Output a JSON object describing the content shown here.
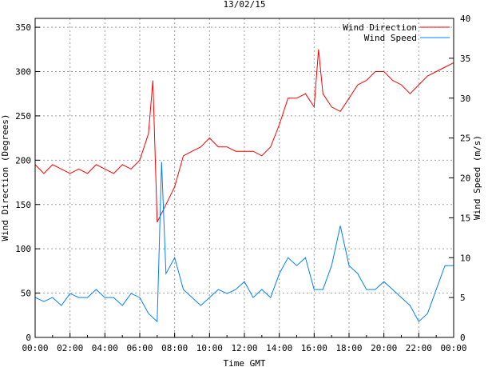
{
  "chart_data": {
    "type": "line",
    "title": "13/02/15",
    "xlabel": "Time GMT",
    "ylabel": "Wind Direction (Degrees)",
    "y2label": "Wind Speed (m/s)",
    "xlim": [
      0,
      24
    ],
    "ylim": [
      0,
      360
    ],
    "y2lim": [
      0,
      40
    ],
    "grid": true,
    "legend_position": "top-right",
    "x_tick_labels": [
      "00:00",
      "02:00",
      "04:00",
      "06:00",
      "08:00",
      "10:00",
      "12:00",
      "14:00",
      "16:00",
      "18:00",
      "20:00",
      "22:00",
      "00:00"
    ],
    "y_ticks": [
      0,
      50,
      100,
      150,
      200,
      250,
      300,
      350
    ],
    "y2_ticks": [
      0,
      5,
      10,
      15,
      20,
      25,
      30,
      35,
      40
    ],
    "series": [
      {
        "name": "Wind Direction",
        "axis": "left",
        "color": "#ff0000",
        "x": [
          0,
          0.5,
          1,
          1.5,
          2,
          2.5,
          3,
          3.5,
          4,
          4.5,
          5,
          5.5,
          6,
          6.5,
          6.75,
          7,
          7.5,
          8,
          8.5,
          9,
          9.5,
          10,
          10.5,
          11,
          11.5,
          12,
          12.5,
          13,
          13.5,
          14,
          14.5,
          15,
          15.5,
          16,
          16.25,
          16.5,
          17,
          17.5,
          18,
          18.5,
          19,
          19.5,
          20,
          20.5,
          21,
          21.5,
          22,
          22.5,
          23,
          23.5,
          24
        ],
        "values": [
          195,
          185,
          195,
          190,
          185,
          190,
          185,
          195,
          190,
          185,
          195,
          190,
          200,
          230,
          290,
          130,
          150,
          170,
          205,
          210,
          215,
          225,
          215,
          215,
          210,
          210,
          210,
          205,
          215,
          240,
          270,
          270,
          275,
          260,
          325,
          275,
          260,
          255,
          270,
          285,
          290,
          300,
          300,
          290,
          285,
          275,
          285,
          295,
          300,
          305,
          310
        ]
      },
      {
        "name": "Wind Speed",
        "axis": "right",
        "color": "#0080ff",
        "x": [
          0,
          0.5,
          1,
          1.5,
          2,
          2.5,
          3,
          3.5,
          4,
          4.5,
          5,
          5.5,
          6,
          6.5,
          7,
          7.25,
          7.5,
          8,
          8.5,
          9,
          9.5,
          10,
          10.5,
          11,
          11.5,
          12,
          12.5,
          13,
          13.5,
          14,
          14.5,
          15,
          15.5,
          16,
          16.5,
          17,
          17.5,
          18,
          18.5,
          19,
          19.5,
          20,
          20.5,
          21,
          21.5,
          22,
          22.5,
          23,
          23.5,
          24
        ],
        "values": [
          5,
          4.5,
          5,
          4,
          5.5,
          5,
          5,
          6,
          5,
          5,
          4,
          5.5,
          5,
          3,
          2,
          22,
          8,
          10,
          6,
          5,
          4,
          5,
          6,
          5.5,
          6,
          7,
          5,
          6,
          5,
          8,
          10,
          9,
          10,
          6,
          6,
          9,
          14,
          9,
          8,
          6,
          6,
          7,
          6,
          5,
          4,
          2,
          3,
          6,
          9,
          9
        ]
      }
    ]
  }
}
